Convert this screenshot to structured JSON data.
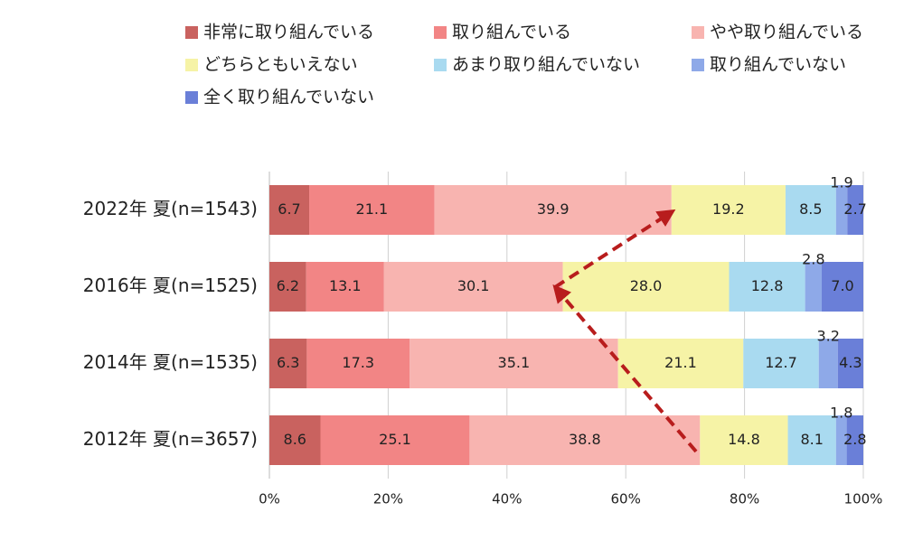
{
  "chart_data": {
    "type": "stacked-bar-horizontal",
    "categories": [
      "2022年 夏(n=1543)",
      "2016年 夏(n=1525)",
      "2014年 夏(n=1535)",
      "2012年 夏(n=3657)"
    ],
    "series": [
      {
        "name": "非常に取り組んでいる",
        "color": "#c9625f",
        "values": [
          6.7,
          6.2,
          6.3,
          8.6
        ]
      },
      {
        "name": "取り組んでいる",
        "color": "#f28585",
        "values": [
          21.1,
          13.1,
          17.3,
          25.1
        ]
      },
      {
        "name": "やや取り組んでいる",
        "color": "#f8b4b0",
        "values": [
          39.9,
          30.1,
          35.1,
          38.8
        ]
      },
      {
        "name": "どちらともいえない",
        "color": "#f6f3a6",
        "values": [
          19.2,
          28.0,
          21.1,
          14.8
        ],
        "value_labels": [
          "19.2",
          "28.0",
          "21.1",
          "14.8"
        ]
      },
      {
        "name": "あまり取り組んでいない",
        "color": "#a9daf0",
        "values": [
          8.5,
          12.8,
          12.7,
          8.1
        ]
      },
      {
        "name": "取り組んでいない",
        "color": "#8ea9e8",
        "values": [
          1.9,
          2.8,
          3.2,
          1.8
        ]
      },
      {
        "name": "全く取り組んでいない",
        "color": "#6a7fd8",
        "values": [
          2.7,
          7.0,
          4.3,
          2.8
        ],
        "value_labels": [
          "2.7",
          "7.0",
          "4.3",
          "2.8"
        ]
      }
    ],
    "xlim": [
      0,
      100
    ],
    "xticks": [
      {
        "value": 0,
        "label": "0%"
      },
      {
        "value": 20,
        "label": "20%"
      },
      {
        "value": 40,
        "label": "40%"
      },
      {
        "value": 60,
        "label": "60%"
      },
      {
        "value": 80,
        "label": "80%"
      },
      {
        "value": 100,
        "label": "100%"
      }
    ],
    "grid": true
  }
}
